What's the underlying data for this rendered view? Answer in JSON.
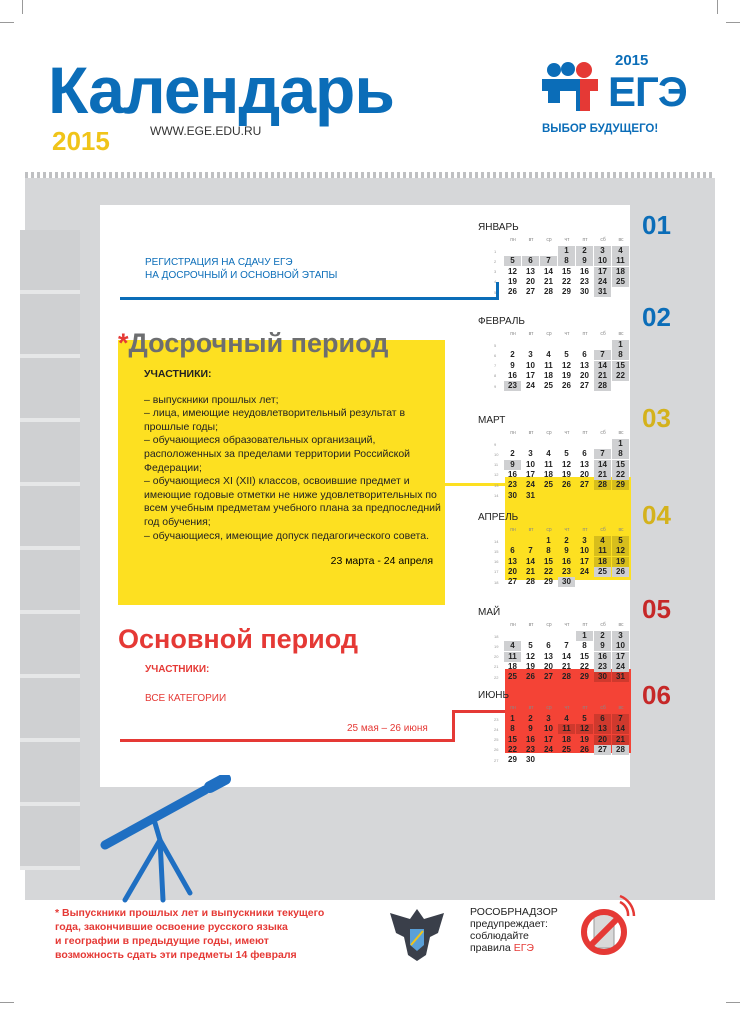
{
  "header": {
    "title": "Календарь",
    "year": "2015",
    "url": "WWW.EGE.EDU.RU"
  },
  "logo": {
    "year": "2015",
    "name": "ЕГЭ",
    "slogan": "ВЫБОР БУДУЩЕГО!"
  },
  "registration": {
    "line1": "РЕГИСТРАЦИЯ НА СДАЧУ ЕГЭ",
    "line2": "НА ДОСРОЧНЫЙ И ОСНОВНОЙ ЭТАПЫ"
  },
  "early": {
    "star": "*",
    "title": "Досрочный период",
    "participants_label": "УЧАСТНИКИ:",
    "items": [
      "– выпускники прошлых лет;",
      "– лица, имеющие неудовлетворительный результат в прошлые годы;",
      "– обучающиеся образовательных организаций, расположенных за пределами территории Российской Федерации;",
      "– обучающиеся XI (XII) классов, освоившие предмет и имеющие годовые отметки не ниже удовлетворительных по всем учебным предметам учебного плана за предпоследний год обучения;",
      "– обучающиеся, имеющие допуск педагогического совета."
    ],
    "dates": "23 марта - 24 апреля"
  },
  "main": {
    "title": "Основной период",
    "participants_label": "УЧАСТНИКИ:",
    "participants": "ВСЕ КАТЕГОРИИ",
    "dates": "25 мая – 26 июня"
  },
  "weekdays": [
    "пн",
    "вт",
    "ср",
    "чт",
    "пт",
    "сб",
    "вс"
  ],
  "month_numbers": [
    "01",
    "02",
    "03",
    "04",
    "05",
    "06"
  ],
  "colors": {
    "blue": "#0b6db8",
    "yellow": "#fde021",
    "red": "#e53935",
    "gray": "#cfd0d2"
  },
  "months": [
    {
      "name": "ЯНВАРЬ",
      "start": 3,
      "days": 31,
      "weeks": [
        "1",
        "2",
        "3",
        "4",
        "5"
      ],
      "shaded": [
        1,
        2,
        3,
        4,
        5,
        6,
        7,
        8,
        9,
        10,
        11,
        17,
        18,
        24,
        25,
        31
      ]
    },
    {
      "name": "ФЕВРАЛЬ",
      "start": 6,
      "days": 28,
      "weeks": [
        "5",
        "6",
        "7",
        "8",
        "9"
      ],
      "shaded": [
        1,
        7,
        8,
        14,
        15,
        21,
        22,
        23,
        28
      ]
    },
    {
      "name": "МАРТ",
      "start": 6,
      "days": 31,
      "weeks": [
        "9",
        "10",
        "11",
        "12",
        "13",
        "14"
      ],
      "shaded": [
        1,
        7,
        8,
        9,
        14,
        15,
        21,
        22,
        28,
        29
      ]
    },
    {
      "name": "АПРЕЛЬ",
      "start": 2,
      "days": 30,
      "weeks": [
        "14",
        "15",
        "16",
        "17",
        "18"
      ],
      "shaded": [
        4,
        5,
        11,
        12,
        18,
        19,
        25,
        26,
        30
      ]
    },
    {
      "name": "МАЙ",
      "start": 4,
      "days": 31,
      "weeks": [
        "18",
        "19",
        "20",
        "21",
        "22"
      ],
      "shaded": [
        1,
        2,
        3,
        4,
        9,
        10,
        11,
        16,
        17,
        23,
        24,
        30,
        31
      ]
    },
    {
      "name": "ИЮНЬ",
      "start": 0,
      "days": 30,
      "weeks": [
        "23",
        "24",
        "25",
        "26",
        "27"
      ],
      "shaded": [
        6,
        7,
        11,
        12,
        13,
        14,
        20,
        21,
        27,
        28
      ]
    }
  ],
  "footnote": [
    "* Выпускники прошлых лет и выпускники текущего",
    "года, закончившие освоение русского языка",
    "и географии в предыдущие годы, имеют",
    "возможность сдать эти предметы 14 февраля"
  ],
  "rosobr": {
    "l1": "РОСОБРНАДЗОР",
    "l2": "предупреждает:",
    "l3": "соблюдайте",
    "l4": "правила ",
    "l5": "ЕГЭ"
  }
}
